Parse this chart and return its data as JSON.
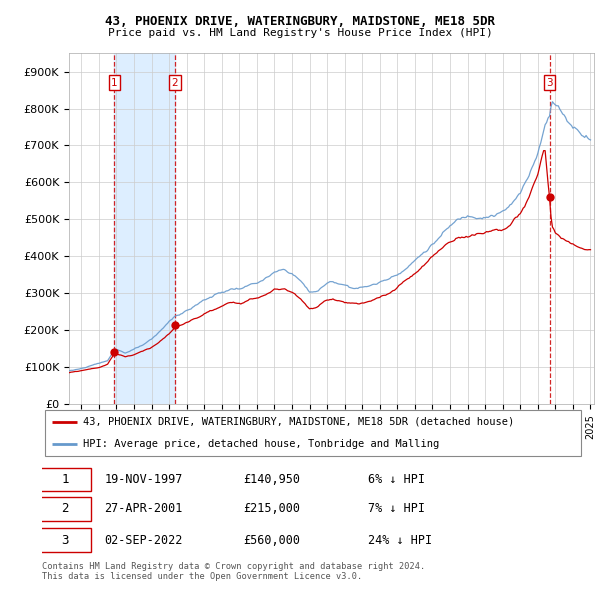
{
  "title1": "43, PHOENIX DRIVE, WATERINGBURY, MAIDSTONE, ME18 5DR",
  "title2": "Price paid vs. HM Land Registry's House Price Index (HPI)",
  "ylim": [
    0,
    950000
  ],
  "yticks": [
    0,
    100000,
    200000,
    300000,
    400000,
    500000,
    600000,
    700000,
    800000,
    900000
  ],
  "ytick_labels": [
    "£0",
    "£100K",
    "£200K",
    "£300K",
    "£400K",
    "£500K",
    "£600K",
    "£700K",
    "£800K",
    "£900K"
  ],
  "transactions": [
    {
      "date_str": "19-NOV-1997",
      "date_num": 1997.89,
      "price": 140950,
      "label": "1"
    },
    {
      "date_str": "27-APR-2001",
      "date_num": 2001.32,
      "price": 215000,
      "label": "2"
    },
    {
      "date_str": "02-SEP-2022",
      "date_num": 2022.67,
      "price": 560000,
      "label": "3"
    }
  ],
  "legend_property_label": "43, PHOENIX DRIVE, WATERINGBURY, MAIDSTONE, ME18 5DR (detached house)",
  "legend_hpi_label": "HPI: Average price, detached house, Tonbridge and Malling",
  "property_color": "#cc0000",
  "hpi_color": "#6699cc",
  "shade_color": "#ddeeff",
  "footer1": "Contains HM Land Registry data © Crown copyright and database right 2024.",
  "footer2": "This data is licensed under the Open Government Licence v3.0.",
  "xlim_start": 1995.3,
  "xlim_end": 2025.2,
  "table_rows": [
    {
      "num": "1",
      "date": "19-NOV-1997",
      "price": "£140,950",
      "pct": "6% ↓ HPI"
    },
    {
      "num": "2",
      "date": "27-APR-2001",
      "price": "£215,000",
      "pct": "7% ↓ HPI"
    },
    {
      "num": "3",
      "date": "02-SEP-2022",
      "price": "£560,000",
      "pct": "24% ↓ HPI"
    }
  ]
}
